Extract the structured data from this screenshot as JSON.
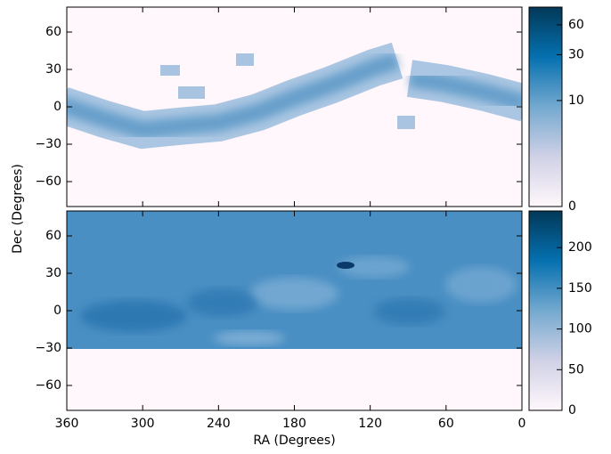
{
  "chart_data": [
    {
      "type": "heatmap",
      "ylabel": "Dec (Degrees)",
      "xlim": [
        360,
        0
      ],
      "ylim": [
        -80,
        80
      ],
      "yticks": [
        {
          "value": -60,
          "label": "−60"
        },
        {
          "value": -30,
          "label": "−30"
        },
        0,
        30,
        60
      ],
      "colormap": [
        "#fff7fb",
        "#d0d1e6",
        "#74a9cf",
        "#0570b0",
        "#023858"
      ],
      "colorbar": {
        "scale": "log1p",
        "lim": [
          0,
          90
        ],
        "ticks": [
          0,
          10,
          30,
          60
        ]
      }
    },
    {
      "type": "heatmap",
      "xlabel": "RA (Degrees)",
      "xlim": [
        360,
        0
      ],
      "ylim": [
        -80,
        80
      ],
      "xticks": [
        360,
        300,
        240,
        180,
        120,
        60,
        0
      ],
      "yticks": [
        {
          "value": -60,
          "label": "−60"
        },
        {
          "value": -30,
          "label": "−30"
        },
        0,
        30,
        60
      ],
      "colormap": [
        "#fff7fb",
        "#d0d1e6",
        "#74a9cf",
        "#0570b0",
        "#023858"
      ],
      "colorbar": {
        "scale": "linear",
        "lim": [
          0,
          245
        ],
        "ticks": [
          0,
          50,
          100,
          150,
          200
        ]
      }
    }
  ]
}
